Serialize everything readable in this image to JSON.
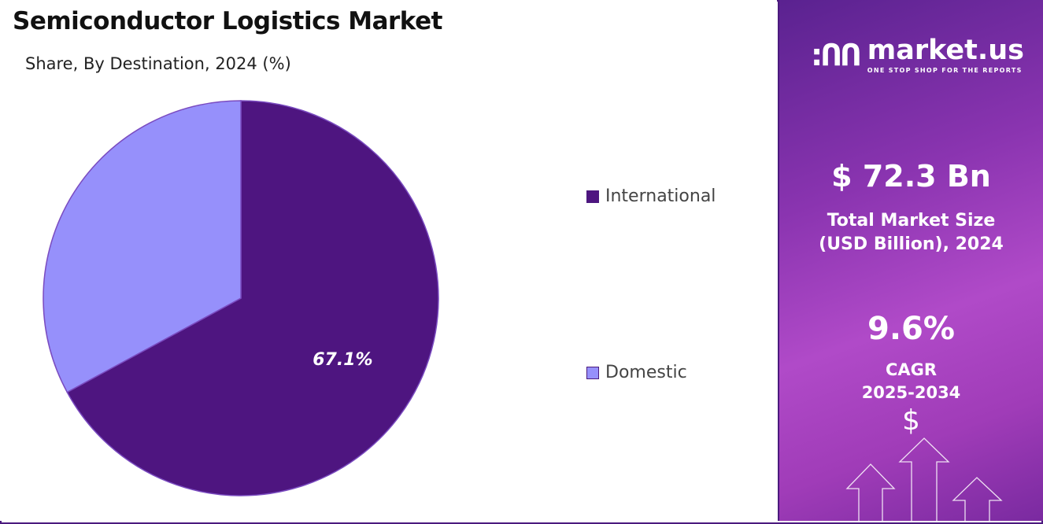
{
  "title": "Semiconductor Logistics Market",
  "subtitle": "Share, By Destination, 2024 (%)",
  "chart_data": {
    "type": "pie",
    "categories": [
      "International",
      "Domestic"
    ],
    "values": [
      67.1,
      32.9
    ],
    "data_labels": [
      "67.1%",
      ""
    ],
    "colors": [
      "#4e1580",
      "#9690fb"
    ],
    "legend": "right"
  },
  "sidebar": {
    "brand": "market.us",
    "tagline": "ONE STOP SHOP FOR THE REPORTS",
    "market_size": "$ 72.3 Bn",
    "market_size_label_1": "Total Market Size",
    "market_size_label_2": "(USD Billion), 2024",
    "cagr": "9.6%",
    "cagr_label": "CAGR",
    "cagr_period": "2025-2034",
    "dollar_symbol": "$"
  }
}
